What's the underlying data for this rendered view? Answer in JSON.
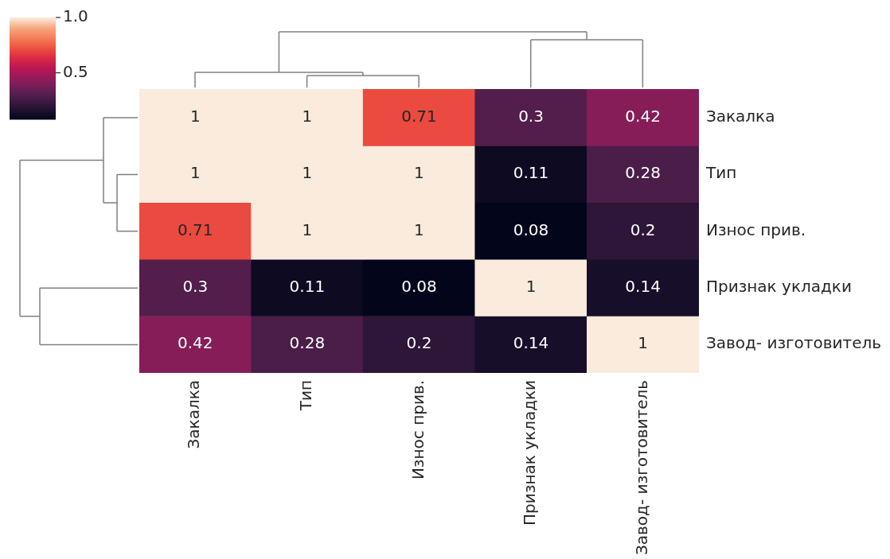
{
  "chart_data": {
    "type": "heatmap",
    "categories": [
      "Закалка",
      "Тип",
      "Износ прив.",
      "Признак укладки",
      "Завод- изготовитель"
    ],
    "y_categories": [
      "Закалка",
      "Тип",
      "Износ прив.",
      "Признак укладки",
      "Завод- изготовитель"
    ],
    "cells": [
      [
        1,
        1,
        0.71,
        0.3,
        0.42
      ],
      [
        1,
        1,
        1,
        0.11,
        0.28
      ],
      [
        0.71,
        1,
        1,
        0.08,
        0.2
      ],
      [
        0.3,
        0.11,
        0.08,
        1,
        0.14
      ],
      [
        0.42,
        0.28,
        0.2,
        0.14,
        1
      ]
    ],
    "clim": [
      0.08,
      1
    ],
    "cticks": [
      0.5,
      {
        "value": 1,
        "label": "1.0"
      }
    ],
    "data_labels": true
  }
}
